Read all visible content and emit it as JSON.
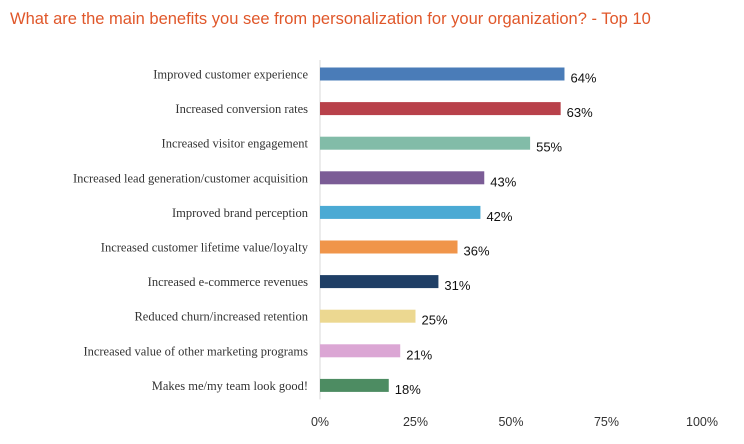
{
  "chart_data": {
    "type": "bar",
    "orientation": "horizontal",
    "title": "What are the main benefits you see from personalization for your organization? - Top 10",
    "categories": [
      "Improved customer experience",
      "Increased conversion rates",
      "Increased visitor engagement",
      "Increased lead generation/customer acquisition",
      "Improved brand perception",
      "Increased customer lifetime value/loyalty",
      "Increased e-commerce revenues",
      "Reduced churn/increased retention",
      "Increased value of other marketing programs",
      "Makes me/my team look good!"
    ],
    "values": [
      64,
      63,
      55,
      43,
      42,
      36,
      31,
      25,
      21,
      18
    ],
    "value_labels": [
      "64%",
      "63%",
      "55%",
      "43%",
      "42%",
      "36%",
      "31%",
      "25%",
      "21%",
      "18%"
    ],
    "colors": [
      "#4a7cb8",
      "#b8414a",
      "#82bca8",
      "#7b5c96",
      "#4baad4",
      "#f0954a",
      "#1f3f66",
      "#ecd891",
      "#dba6d4",
      "#4d8c62"
    ],
    "xlim": [
      0,
      100
    ],
    "x_ticks": [
      "0%",
      "25%",
      "50%",
      "75%",
      "100%"
    ],
    "xlabel": "",
    "ylabel": "",
    "grid": false,
    "legend": "none"
  }
}
